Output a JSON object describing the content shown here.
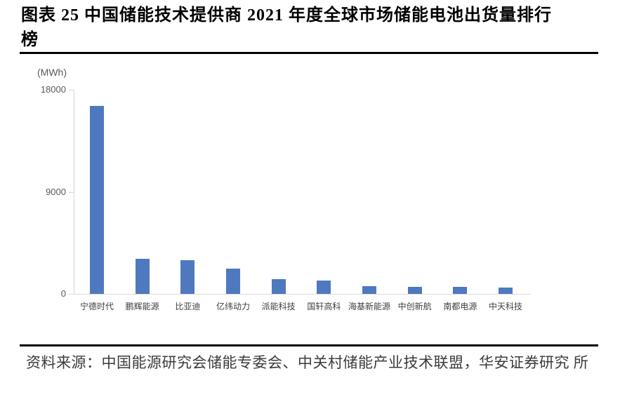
{
  "header": {
    "title_lines": [
      "图表 25 中国储能技术提供商 2021 年度全球市场储能电池出货量排行",
      "榜"
    ]
  },
  "chart_data": {
    "type": "bar",
    "title": "中国储能技术提供商2021年度全球市场储能电池出货量排行榜",
    "unit_label": "(MWh)",
    "categories": [
      "宁德时代",
      "鹏辉能源",
      "比亚迪",
      "亿纬动力",
      "派能科技",
      "国轩高科",
      "海基新能源",
      "中创新航",
      "南都电源",
      "中天科技"
    ],
    "values": [
      16600,
      3100,
      3000,
      2200,
      1300,
      1200,
      680,
      620,
      600,
      580
    ],
    "xlabel": "",
    "ylabel": "(MWh)",
    "ylim": [
      0,
      18000
    ],
    "yticks": [
      18000,
      9000,
      0
    ],
    "grid": false,
    "legend_position": "none",
    "bar_color": "#4e79bf",
    "axis_color": "#d9d9d9"
  },
  "footer": {
    "source_lines": [
      "资料来源：中国能源研究会储能专委会、中关村储能产业技术联盟，华安证券研究",
      "所"
    ]
  }
}
